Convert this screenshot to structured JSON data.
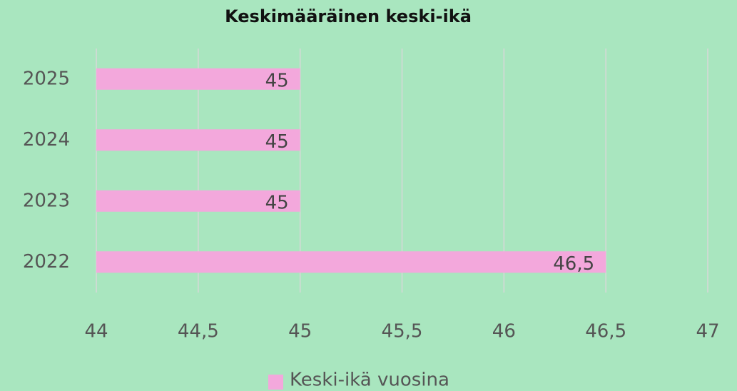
{
  "chart_data": {
    "type": "hbar",
    "title": "Keskimääräinen keski-ikä",
    "categories": [
      "2025",
      "2024",
      "2023",
      "2022"
    ],
    "series": [
      {
        "name": "Keski-ikä vuosina",
        "color": "#f3a8dc",
        "values": [
          45,
          45,
          45,
          46.5
        ],
        "value_labels": [
          "45",
          "45",
          "45",
          "46,5"
        ]
      }
    ],
    "xlim": [
      44,
      47
    ],
    "xticks": [
      44,
      {
        "value": 44.5,
        "label": "44,5"
      },
      45,
      {
        "value": 45.5,
        "label": "45,5"
      },
      46,
      {
        "value": 46.5,
        "label": "46,5"
      },
      47
    ],
    "grid": true,
    "legend": "bottom"
  }
}
